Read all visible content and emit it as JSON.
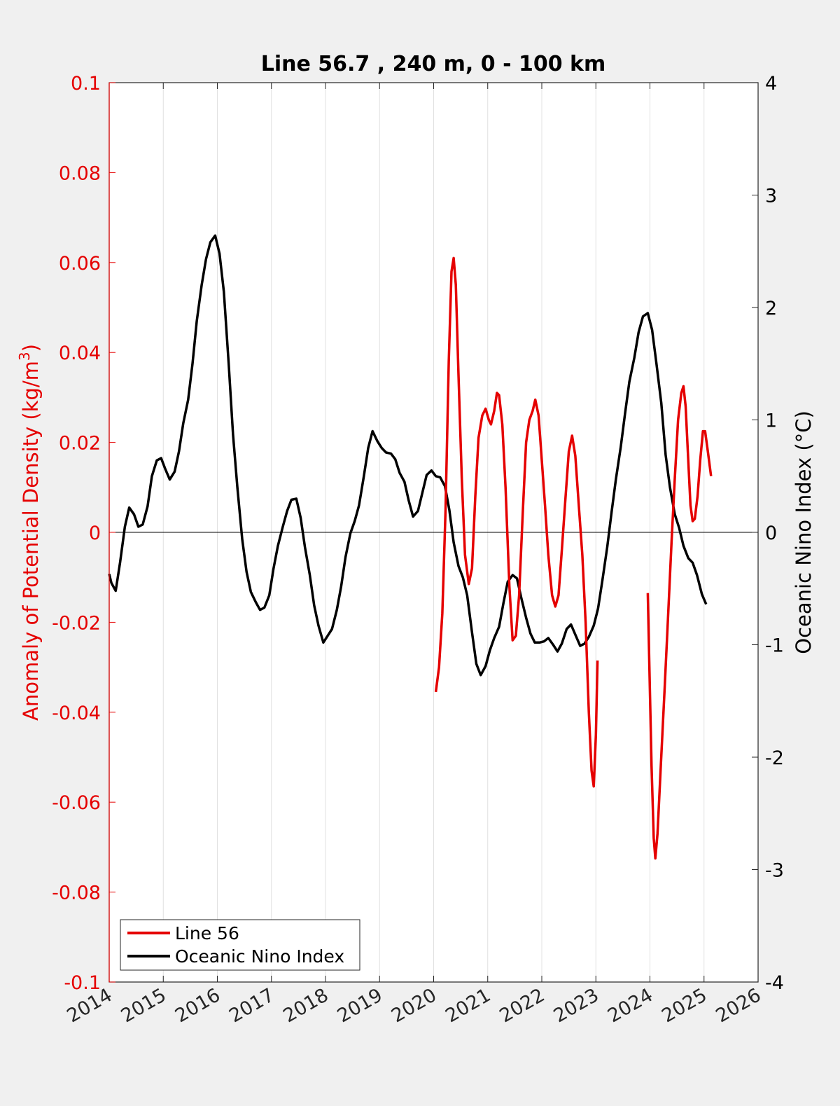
{
  "chart_data": {
    "type": "line",
    "title": "Line 56.7 , 240 m, 0 - 100 km",
    "xlabel": "",
    "ylabel_left_text": "Anomaly of Potential Density (kg/m",
    "ylabel_left_sup": "3",
    "ylabel_left_close": ")",
    "ylabel_right": "Oceanic Nino Index (°C)",
    "xlim": [
      2014,
      2026
    ],
    "ylim_left": [
      -0.1,
      0.1
    ],
    "ylim_right": [
      -4,
      4
    ],
    "x_ticks": [
      "2014",
      "2015",
      "2016",
      "2017",
      "2018",
      "2019",
      "2020",
      "2021",
      "2022",
      "2023",
      "2024",
      "2025",
      "2026"
    ],
    "y_left_ticks": [
      "0.1",
      "0.08",
      "0.06",
      "0.04",
      "0.02",
      "0",
      "-0.02",
      "-0.04",
      "-0.06",
      "-0.08",
      "-0.1"
    ],
    "y_right_ticks": [
      "4",
      "3",
      "2",
      "1",
      "0",
      "-1",
      "-2",
      "-3",
      "-4"
    ],
    "grid": "vertical",
    "legend": "bottom-left",
    "colors": {
      "line56": "#e50000",
      "oni": "#000000",
      "left_axis": "#e50000",
      "right_axis": "#000000"
    },
    "series": [
      {
        "name": "Line 56",
        "axis": "left",
        "segments": [
          [
            [
              2020.04,
              -0.0355
            ],
            [
              2020.1,
              -0.03
            ],
            [
              2020.16,
              -0.018
            ],
            [
              2020.22,
              0.005
            ],
            [
              2020.28,
              0.038
            ],
            [
              2020.33,
              0.058
            ],
            [
              2020.37,
              0.061
            ],
            [
              2020.41,
              0.055
            ],
            [
              2020.46,
              0.035
            ],
            [
              2020.52,
              0.012
            ],
            [
              2020.58,
              -0.005
            ],
            [
              2020.65,
              -0.0115
            ],
            [
              2020.71,
              -0.008
            ],
            [
              2020.77,
              0.008
            ],
            [
              2020.83,
              0.021
            ],
            [
              2020.9,
              0.026
            ],
            [
              2020.96,
              0.0275
            ],
            [
              2021.02,
              0.025
            ],
            [
              2021.06,
              0.024
            ],
            [
              2021.12,
              0.027
            ],
            [
              2021.17,
              0.031
            ],
            [
              2021.21,
              0.0305
            ],
            [
              2021.27,
              0.024
            ],
            [
              2021.33,
              0.01
            ],
            [
              2021.4,
              -0.012
            ],
            [
              2021.46,
              -0.024
            ],
            [
              2021.52,
              -0.023
            ],
            [
              2021.58,
              -0.014
            ],
            [
              2021.65,
              0.005
            ],
            [
              2021.71,
              0.02
            ],
            [
              2021.77,
              0.025
            ],
            [
              2021.83,
              0.027
            ],
            [
              2021.88,
              0.0295
            ],
            [
              2021.94,
              0.026
            ],
            [
              2022.0,
              0.016
            ],
            [
              2022.06,
              0.006
            ],
            [
              2022.12,
              -0.005
            ],
            [
              2022.19,
              -0.014
            ],
            [
              2022.25,
              -0.0165
            ],
            [
              2022.31,
              -0.014
            ],
            [
              2022.37,
              -0.004
            ],
            [
              2022.44,
              0.008
            ],
            [
              2022.5,
              0.018
            ],
            [
              2022.56,
              0.0215
            ],
            [
              2022.62,
              0.017
            ],
            [
              2022.69,
              0.005
            ],
            [
              2022.75,
              -0.005
            ],
            [
              2022.81,
              -0.02
            ],
            [
              2022.87,
              -0.04
            ],
            [
              2022.92,
              -0.053
            ],
            [
              2022.96,
              -0.0565
            ],
            [
              2023.0,
              -0.045
            ],
            [
              2023.03,
              -0.0285
            ]
          ],
          [
            [
              2023.96,
              -0.0135
            ],
            [
              2023.99,
              -0.03
            ],
            [
              2024.03,
              -0.052
            ],
            [
              2024.07,
              -0.068
            ],
            [
              2024.1,
              -0.0725
            ],
            [
              2024.14,
              -0.067
            ],
            [
              2024.2,
              -0.052
            ],
            [
              2024.27,
              -0.035
            ],
            [
              2024.33,
              -0.02
            ],
            [
              2024.4,
              -0.002
            ],
            [
              2024.46,
              0.012
            ],
            [
              2024.52,
              0.025
            ],
            [
              2024.58,
              0.031
            ],
            [
              2024.62,
              0.0325
            ],
            [
              2024.66,
              0.028
            ],
            [
              2024.7,
              0.018
            ],
            [
              2024.75,
              0.006
            ],
            [
              2024.79,
              0.0025
            ],
            [
              2024.83,
              0.003
            ],
            [
              2024.88,
              0.008
            ],
            [
              2024.93,
              0.016
            ],
            [
              2024.98,
              0.0225
            ],
            [
              2025.02,
              0.0225
            ],
            [
              2025.07,
              0.018
            ],
            [
              2025.13,
              0.0125
            ]
          ]
        ]
      },
      {
        "name": "Oceanic Nino Index",
        "axis": "right",
        "points": [
          [
            2014.0,
            -0.37
          ],
          [
            2014.04,
            -0.45
          ],
          [
            2014.12,
            -0.52
          ],
          [
            2014.2,
            -0.27
          ],
          [
            2014.29,
            0.05
          ],
          [
            2014.37,
            0.22
          ],
          [
            2014.46,
            0.16
          ],
          [
            2014.54,
            0.05
          ],
          [
            2014.62,
            0.07
          ],
          [
            2014.71,
            0.23
          ],
          [
            2014.79,
            0.5
          ],
          [
            2014.88,
            0.64
          ],
          [
            2014.96,
            0.66
          ],
          [
            2015.04,
            0.56
          ],
          [
            2015.12,
            0.47
          ],
          [
            2015.21,
            0.54
          ],
          [
            2015.29,
            0.72
          ],
          [
            2015.37,
            0.97
          ],
          [
            2015.46,
            1.18
          ],
          [
            2015.54,
            1.5
          ],
          [
            2015.62,
            1.88
          ],
          [
            2015.71,
            2.2
          ],
          [
            2015.79,
            2.43
          ],
          [
            2015.87,
            2.58
          ],
          [
            2015.96,
            2.64
          ],
          [
            2016.04,
            2.48
          ],
          [
            2016.12,
            2.14
          ],
          [
            2016.21,
            1.5
          ],
          [
            2016.29,
            0.87
          ],
          [
            2016.37,
            0.4
          ],
          [
            2016.46,
            -0.06
          ],
          [
            2016.54,
            -0.35
          ],
          [
            2016.62,
            -0.53
          ],
          [
            2016.71,
            -0.62
          ],
          [
            2016.79,
            -0.69
          ],
          [
            2016.87,
            -0.67
          ],
          [
            2016.96,
            -0.56
          ],
          [
            2017.04,
            -0.32
          ],
          [
            2017.12,
            -0.12
          ],
          [
            2017.21,
            0.05
          ],
          [
            2017.29,
            0.19
          ],
          [
            2017.37,
            0.29
          ],
          [
            2017.46,
            0.3
          ],
          [
            2017.54,
            0.13
          ],
          [
            2017.62,
            -0.13
          ],
          [
            2017.71,
            -0.38
          ],
          [
            2017.79,
            -0.65
          ],
          [
            2017.87,
            -0.83
          ],
          [
            2017.96,
            -0.98
          ],
          [
            2018.04,
            -0.92
          ],
          [
            2018.12,
            -0.86
          ],
          [
            2018.21,
            -0.69
          ],
          [
            2018.29,
            -0.48
          ],
          [
            2018.37,
            -0.22
          ],
          [
            2018.46,
            -0.01
          ],
          [
            2018.54,
            0.1
          ],
          [
            2018.62,
            0.24
          ],
          [
            2018.71,
            0.5
          ],
          [
            2018.79,
            0.75
          ],
          [
            2018.87,
            0.9
          ],
          [
            2018.96,
            0.81
          ],
          [
            2019.04,
            0.75
          ],
          [
            2019.12,
            0.71
          ],
          [
            2019.21,
            0.7
          ],
          [
            2019.29,
            0.65
          ],
          [
            2019.37,
            0.53
          ],
          [
            2019.46,
            0.45
          ],
          [
            2019.54,
            0.28
          ],
          [
            2019.62,
            0.14
          ],
          [
            2019.71,
            0.19
          ],
          [
            2019.79,
            0.35
          ],
          [
            2019.87,
            0.51
          ],
          [
            2019.96,
            0.55
          ],
          [
            2020.04,
            0.5
          ],
          [
            2020.12,
            0.49
          ],
          [
            2020.21,
            0.41
          ],
          [
            2020.29,
            0.2
          ],
          [
            2020.37,
            -0.09
          ],
          [
            2020.46,
            -0.3
          ],
          [
            2020.54,
            -0.4
          ],
          [
            2020.62,
            -0.56
          ],
          [
            2020.71,
            -0.89
          ],
          [
            2020.79,
            -1.17
          ],
          [
            2020.87,
            -1.27
          ],
          [
            2020.96,
            -1.19
          ],
          [
            2021.04,
            -1.05
          ],
          [
            2021.12,
            -0.94
          ],
          [
            2021.21,
            -0.84
          ],
          [
            2021.29,
            -0.63
          ],
          [
            2021.37,
            -0.44
          ],
          [
            2021.46,
            -0.38
          ],
          [
            2021.54,
            -0.41
          ],
          [
            2021.62,
            -0.58
          ],
          [
            2021.71,
            -0.76
          ],
          [
            2021.79,
            -0.9
          ],
          [
            2021.87,
            -0.98
          ],
          [
            2021.96,
            -0.98
          ],
          [
            2022.04,
            -0.97
          ],
          [
            2022.12,
            -0.94
          ],
          [
            2022.21,
            -1.0
          ],
          [
            2022.29,
            -1.06
          ],
          [
            2022.37,
            -0.99
          ],
          [
            2022.46,
            -0.86
          ],
          [
            2022.54,
            -0.82
          ],
          [
            2022.62,
            -0.91
          ],
          [
            2022.71,
            -1.01
          ],
          [
            2022.79,
            -0.99
          ],
          [
            2022.87,
            -0.93
          ],
          [
            2022.96,
            -0.83
          ],
          [
            2023.04,
            -0.68
          ],
          [
            2023.12,
            -0.43
          ],
          [
            2023.21,
            -0.13
          ],
          [
            2023.29,
            0.18
          ],
          [
            2023.37,
            0.47
          ],
          [
            2023.46,
            0.76
          ],
          [
            2023.54,
            1.06
          ],
          [
            2023.62,
            1.34
          ],
          [
            2023.71,
            1.55
          ],
          [
            2023.79,
            1.78
          ],
          [
            2023.87,
            1.92
          ],
          [
            2023.96,
            1.95
          ],
          [
            2024.04,
            1.8
          ],
          [
            2024.12,
            1.5
          ],
          [
            2024.21,
            1.15
          ],
          [
            2024.29,
            0.69
          ],
          [
            2024.37,
            0.4
          ],
          [
            2024.46,
            0.16
          ],
          [
            2024.54,
            0.04
          ],
          [
            2024.62,
            -0.12
          ],
          [
            2024.71,
            -0.23
          ],
          [
            2024.79,
            -0.27
          ],
          [
            2024.87,
            -0.38
          ],
          [
            2024.96,
            -0.55
          ],
          [
            2025.04,
            -0.64
          ]
        ]
      }
    ]
  }
}
